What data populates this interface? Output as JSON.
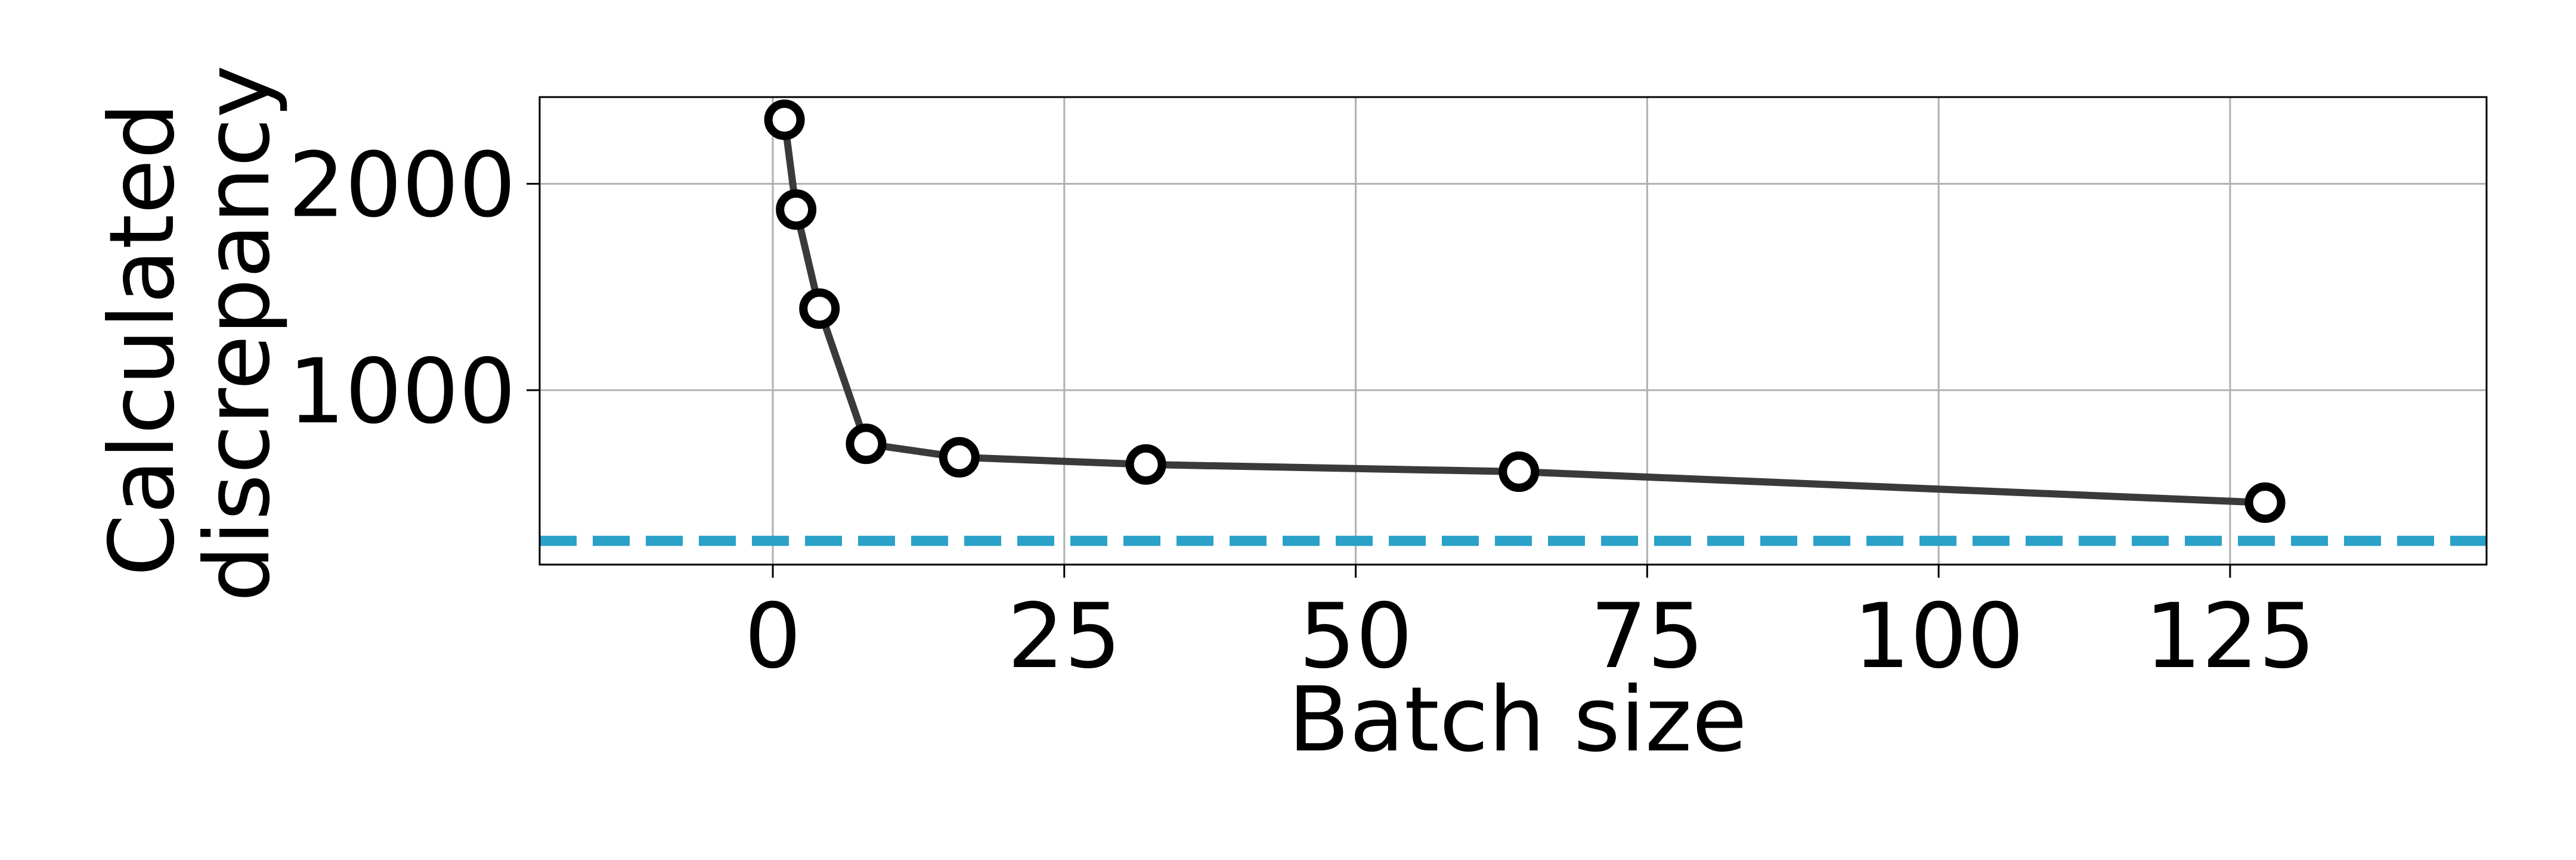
{
  "chart_data": {
    "type": "line",
    "title": "",
    "xlabel": "Batch size",
    "ylabel_lines": [
      "Calculated",
      "discrepancy"
    ],
    "xlim": [
      -20,
      147
    ],
    "ylim": [
      155,
      2420
    ],
    "xticks": [
      0,
      25,
      50,
      75,
      100,
      125
    ],
    "xtick_labels": [
      "0",
      "25",
      "50",
      "75",
      "100",
      "125"
    ],
    "yticks": [
      1000,
      2000
    ],
    "ytick_labels": [
      "1000",
      "2000"
    ],
    "grid": true,
    "legend": "none",
    "series": [
      {
        "color": "#3a3a3a",
        "marker": "open-circle",
        "x": [
          1,
          2,
          4,
          8,
          16,
          32,
          64,
          128
        ],
        "y": [
          2310,
          1875,
          1395,
          740,
          675,
          640,
          605,
          455
        ]
      }
    ],
    "reference_line": {
      "orientation": "horizontal",
      "y": 270,
      "style": "dashed",
      "color": "#2aa1c8"
    },
    "colors": {
      "line": "#3a3a3a",
      "marker_edge": "#000000",
      "marker_fill": "#ffffff",
      "grid": "#b0b0b0",
      "axes": "#000000",
      "reference": "#2aa1c8"
    }
  }
}
